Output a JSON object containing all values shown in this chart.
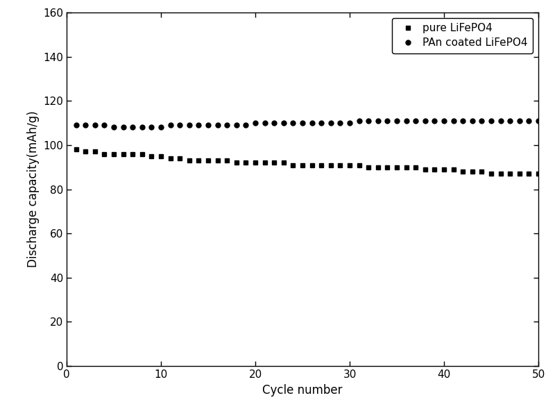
{
  "pure_x": [
    1,
    2,
    3,
    4,
    5,
    6,
    7,
    8,
    9,
    10,
    11,
    12,
    13,
    14,
    15,
    16,
    17,
    18,
    19,
    20,
    21,
    22,
    23,
    24,
    25,
    26,
    27,
    28,
    29,
    30,
    31,
    32,
    33,
    34,
    35,
    36,
    37,
    38,
    39,
    40,
    41,
    42,
    43,
    44,
    45,
    46,
    47,
    48,
    49,
    50
  ],
  "pure_y": [
    98,
    97,
    97,
    96,
    96,
    96,
    96,
    96,
    95,
    95,
    94,
    94,
    93,
    93,
    93,
    93,
    93,
    92,
    92,
    92,
    92,
    92,
    92,
    91,
    91,
    91,
    91,
    91,
    91,
    91,
    91,
    90,
    90,
    90,
    90,
    90,
    90,
    89,
    89,
    89,
    89,
    88,
    88,
    88,
    87,
    87,
    87,
    87,
    87,
    87
  ],
  "pan_x": [
    1,
    2,
    3,
    4,
    5,
    6,
    7,
    8,
    9,
    10,
    11,
    12,
    13,
    14,
    15,
    16,
    17,
    18,
    19,
    20,
    21,
    22,
    23,
    24,
    25,
    26,
    27,
    28,
    29,
    30,
    31,
    32,
    33,
    34,
    35,
    36,
    37,
    38,
    39,
    40,
    41,
    42,
    43,
    44,
    45,
    46,
    47,
    48,
    49,
    50
  ],
  "pan_y": [
    109,
    109,
    109,
    109,
    108,
    108,
    108,
    108,
    108,
    108,
    109,
    109,
    109,
    109,
    109,
    109,
    109,
    109,
    109,
    110,
    110,
    110,
    110,
    110,
    110,
    110,
    110,
    110,
    110,
    110,
    111,
    111,
    111,
    111,
    111,
    111,
    111,
    111,
    111,
    111,
    111,
    111,
    111,
    111,
    111,
    111,
    111,
    111,
    111,
    111
  ],
  "xlabel": "Cycle number",
  "ylabel": "Discharge capacity(mAh/g)",
  "xlim": [
    0,
    50
  ],
  "ylim": [
    0,
    160
  ],
  "xticks": [
    0,
    10,
    20,
    30,
    40,
    50
  ],
  "yticks": [
    0,
    20,
    40,
    60,
    80,
    100,
    120,
    140,
    160
  ],
  "legend1": "pure LiFePO4",
  "legend2": "PAn coated LiFePO4",
  "marker1": "s",
  "marker2": "o",
  "color": "#000000",
  "bg_color": "#ffffff",
  "markersize": 5,
  "linewidth": 0,
  "label_fontsize": 12,
  "tick_fontsize": 11,
  "legend_fontsize": 11
}
